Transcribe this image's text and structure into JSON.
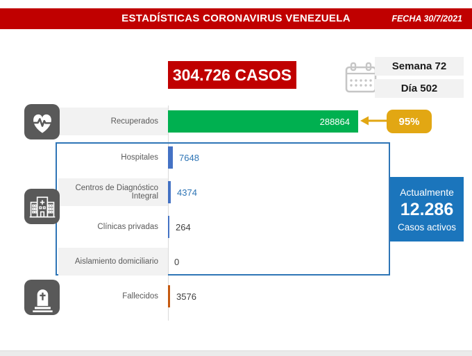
{
  "banner": {
    "title": "ESTADÍSTICAS CORONAVIRUS VENEZUELA",
    "date": "FECHA 30/7/2021"
  },
  "summary": {
    "total_cases": "304.726 CASOS",
    "week": "Semana 72",
    "day": "Día 502"
  },
  "recovered_badge": "95%",
  "active_cases_box": {
    "line1": "Actualmente",
    "value": "12.286",
    "line2": "Casos activos"
  },
  "chart_data": {
    "type": "bar",
    "orientation": "horizontal",
    "categories": [
      "Recuperados",
      "Hospitales",
      "Centros de Diagnóstico Integral",
      "Clínicas privadas",
      "Aislamiento domiciliario",
      "Fallecidos"
    ],
    "values": [
      288864,
      7648,
      4374,
      264,
      0,
      3576
    ],
    "bar_colors": [
      "#00B050",
      "#4472C4",
      "#4472C4",
      "#4472C4",
      "#4472C4",
      "#C55A11"
    ],
    "value_label_colors": [
      "#FFFFFF",
      "#2E75B6",
      "#2E75B6",
      "#404040",
      "#404040",
      "#404040"
    ],
    "value_inside_bar": [
      true,
      false,
      false,
      false,
      false,
      false
    ],
    "band_shaded": [
      true,
      false,
      true,
      false,
      true,
      false
    ],
    "xlim": [
      0,
      288864
    ],
    "annotation": {
      "text": "95%",
      "target": "Recuperados"
    },
    "grid": false,
    "legend": false
  },
  "icons": {
    "calendar": "calendar-icon",
    "recovered": "heart-pulse-icon",
    "facilities": "hospital-icon",
    "deceased": "tombstone-icon"
  },
  "colors": {
    "banner_red": "#C00000",
    "recovered_green": "#00B050",
    "facility_blue": "#4472C4",
    "deaths_orange": "#C55A11",
    "gold": "#E2A713",
    "active_blue": "#1B75BC",
    "frame_blue": "#2E75B6",
    "band_gray": "#F2F2F2",
    "icon_gray": "#595959"
  }
}
